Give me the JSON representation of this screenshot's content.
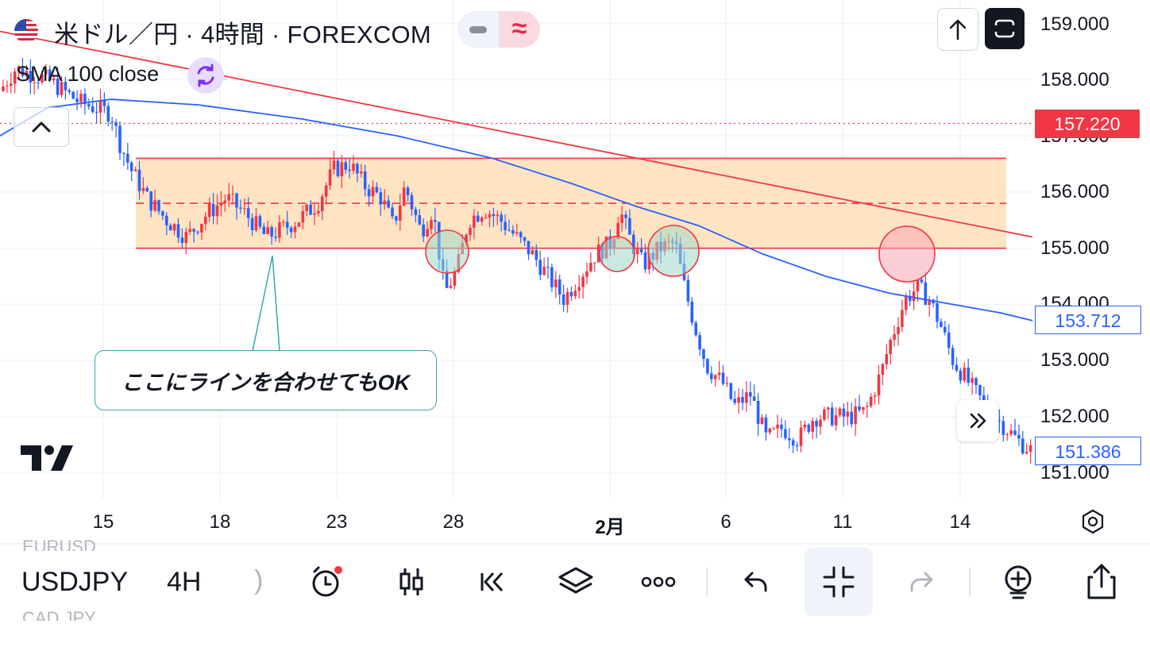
{
  "header": {
    "title": "米ドル／円 · 4時間 · FOREXCOM",
    "flag_icon": "us-jp-flag-icon",
    "pill_left_icon": "minus-icon",
    "pill_right_text": "≈"
  },
  "indicator": {
    "label": "SMA 100 close",
    "icon": "sync-icon"
  },
  "price_axis": {
    "labels": [
      "159.000",
      "158.000",
      "157.000",
      "156.000",
      "155.000",
      "154.000",
      "153.000",
      "152.000",
      "151.000"
    ],
    "current_price": "157.220",
    "sma_value": "153.712",
    "last_price": "151.386"
  },
  "time_axis": {
    "labels": [
      "15",
      "18",
      "23",
      "28",
      "2月",
      "6",
      "11",
      "14"
    ]
  },
  "callout": {
    "text": "ここにラインを合わせてもOK"
  },
  "colors": {
    "up": "#f23645",
    "down": "#2962ff",
    "sma": "#2962ff",
    "trendline": "#f23645",
    "zone_fill": "#ffe3bf",
    "circle_green": "#9ed9c8",
    "circle_red": "#f7a8b2"
  },
  "toolbar": {
    "symbol": "USDJPY",
    "interval": "4H",
    "symbol_ghost_above": "EURUSD",
    "symbol_ghost_below": "CAD JPY",
    "paren": ")",
    "buttons": [
      "alert-icon",
      "candles-icon",
      "replay-icon",
      "layers-icon",
      "more-icon",
      "undo-icon",
      "fit-icon",
      "redo-icon",
      "add-indicator-icon",
      "share-icon"
    ]
  },
  "chart_data": {
    "type": "candlestick",
    "symbol": "USDJPY",
    "interval": "4H",
    "y_axis": {
      "min": 151,
      "max": 159
    },
    "current_price": 157.22,
    "sma_last": 153.712,
    "last": 151.386,
    "zone": {
      "top": 156.6,
      "mid": 155.8,
      "bottom": 155.0
    },
    "trendline": {
      "from": 159.0,
      "to": 155.2
    }
  }
}
